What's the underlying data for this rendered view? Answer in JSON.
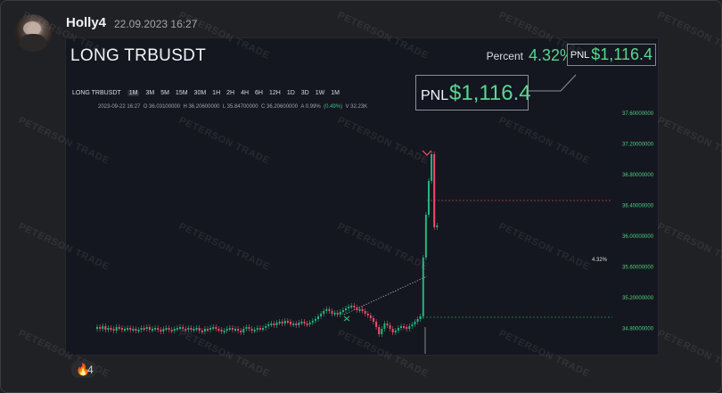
{
  "message": {
    "author": "Holly4",
    "timestamp": "22.09.2023 16:27"
  },
  "trade": {
    "title": "LONG TRBUSDT",
    "percent_label": "Percent",
    "percent_value": "4.32%",
    "pnl_label": "PNL",
    "pnl_value": "$1,116.4"
  },
  "chart": {
    "timeframes": [
      "LONG TRBUSDT",
      "1M",
      "3M",
      "5M",
      "15M",
      "30M",
      "1H",
      "2H",
      "4H",
      "6H",
      "12H",
      "1D",
      "3D",
      "1W",
      "1M"
    ],
    "ohlc": {
      "date": "2023-09-22 16:27",
      "open": "O 36.03100000",
      "high": "H 36.20600000",
      "low": "L 35.84700000",
      "close": "C 36.20600000",
      "amp": "A 0.99%",
      "change": "(0.49%)",
      "volume": "V 32.23K"
    },
    "pct_marker": "4.32%",
    "y_ticks": [
      "37.60000000",
      "37.20000000",
      "36.80000000",
      "36.40000000",
      "36.00000000",
      "35.60000000",
      "35.20000000",
      "34.80000000"
    ]
  },
  "chart_data": {
    "type": "candlestick",
    "y_ticks": [
      37.6,
      37.2,
      36.8,
      36.4,
      36.0,
      35.6,
      35.2,
      34.8
    ],
    "annotations": {
      "percent": "4.32%"
    }
  },
  "watermark_text": "PETERSON TRADE",
  "reaction": {
    "icon": "fire-icon",
    "count": "4"
  },
  "colors": {
    "up": "#24b47e",
    "down": "#f04d67",
    "accent": "#4fd07f"
  }
}
